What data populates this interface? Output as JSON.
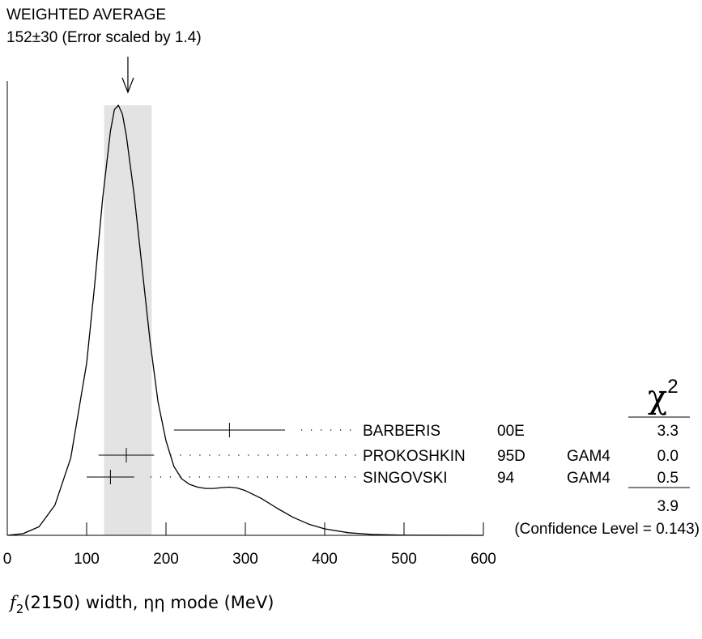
{
  "header": {
    "title": "WEIGHTED AVERAGE",
    "value": "152±30 (Error scaled by 1.4)"
  },
  "chi_header": "χ",
  "chi_sup": "2",
  "chart_data": {
    "type": "ideogram",
    "xlabel": {
      "prefix": "f",
      "subscript": "2",
      "rest": "(2150) width, ηη mode (MeV)"
    },
    "xlim": [
      0,
      600
    ],
    "xticks": [
      0,
      100,
      200,
      300,
      400,
      500,
      600
    ],
    "weighted_average": {
      "value": 152,
      "error": 30,
      "scale_factor": 1.4
    },
    "band": [
      122,
      182
    ],
    "ideogram_curve": [
      [
        0,
        0.0
      ],
      [
        20,
        0.004
      ],
      [
        40,
        0.02
      ],
      [
        60,
        0.07
      ],
      [
        80,
        0.18
      ],
      [
        100,
        0.4
      ],
      [
        110,
        0.58
      ],
      [
        120,
        0.78
      ],
      [
        130,
        0.94
      ],
      [
        135,
        0.99
      ],
      [
        140,
        1.0
      ],
      [
        145,
        0.98
      ],
      [
        150,
        0.93
      ],
      [
        160,
        0.79
      ],
      [
        170,
        0.62
      ],
      [
        180,
        0.45
      ],
      [
        190,
        0.31
      ],
      [
        200,
        0.22
      ],
      [
        210,
        0.16
      ],
      [
        220,
        0.131
      ],
      [
        230,
        0.118
      ],
      [
        240,
        0.112
      ],
      [
        250,
        0.109
      ],
      [
        260,
        0.109
      ],
      [
        270,
        0.111
      ],
      [
        280,
        0.112
      ],
      [
        290,
        0.11
      ],
      [
        300,
        0.104
      ],
      [
        320,
        0.086
      ],
      [
        340,
        0.063
      ],
      [
        360,
        0.042
      ],
      [
        380,
        0.026
      ],
      [
        400,
        0.015
      ],
      [
        430,
        0.006
      ],
      [
        460,
        0.002
      ],
      [
        500,
        0.0003
      ],
      [
        600,
        0.0
      ]
    ],
    "measurements": [
      {
        "name": "BARBERIS",
        "ref": "00E",
        "tech": "",
        "value": 280,
        "low": 210,
        "high": 350,
        "chi2": "3.3"
      },
      {
        "name": "PROKOSHKIN",
        "ref": "95D",
        "tech": "GAM4",
        "value": 150,
        "low": 115,
        "high": 185,
        "chi2": "0.0"
      },
      {
        "name": "SINGOVSKI",
        "ref": "94",
        "tech": "GAM4",
        "value": 130,
        "low": 100,
        "high": 160,
        "chi2": "0.5"
      }
    ],
    "chi2_total": "3.9",
    "confidence_level": "(Confidence Level = 0.143)"
  }
}
